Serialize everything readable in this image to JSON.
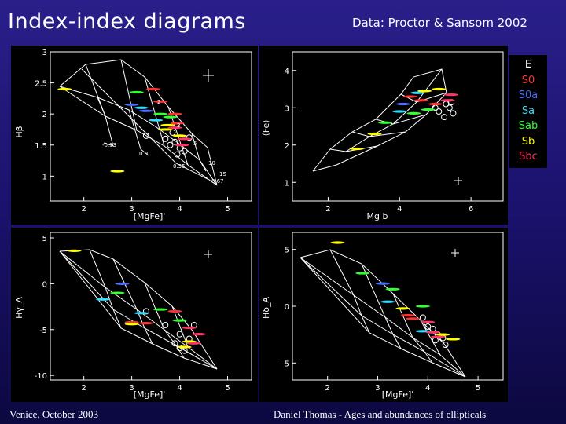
{
  "slide": {
    "title": "Index-index diagrams",
    "credit": "Data: Proctor & Sansom 2002",
    "footer_left": "Venice, October 2003",
    "footer_right": "Daniel Thomas - Ages and abundances of ellipticals"
  },
  "legend": [
    {
      "label": "E",
      "color": "#ffffff"
    },
    {
      "label": "S0",
      "color": "#ff3333"
    },
    {
      "label": "S0a",
      "color": "#4a6cff"
    },
    {
      "label": "Sa",
      "color": "#33ddff"
    },
    {
      "label": "Sab",
      "color": "#33ff33"
    },
    {
      "label": "Sb",
      "color": "#ffff00"
    },
    {
      "label": "Sbc",
      "color": "#ff3366"
    }
  ],
  "chart_data": [
    {
      "type": "scatter",
      "xlabel": "[MgFe]'",
      "ylabel": "Hβ",
      "xlim": [
        1.3,
        5.5
      ],
      "ylim": [
        0.6,
        3.0
      ],
      "xticks": [
        "2",
        "3",
        "4",
        "5"
      ],
      "yticks": [
        "1",
        "1.5",
        "2",
        "2.5",
        "3"
      ],
      "annotations": [
        "2",
        "3",
        "5",
        "10",
        "15",
        "-0.33",
        "0.0",
        "0.35",
        "0.67"
      ],
      "series": [
        {
          "name": "E",
          "points": [
            [
              3.3,
              1.65
            ],
            [
              3.7,
              1.6
            ],
            [
              3.8,
              1.5
            ],
            [
              3.9,
              1.55
            ],
            [
              4.0,
              1.45
            ],
            [
              4.1,
              1.4
            ],
            [
              3.95,
              1.35
            ],
            [
              4.2,
              1.62
            ],
            [
              3.85,
              1.7
            ]
          ]
        },
        {
          "name": "S0",
          "points": [
            [
              3.45,
              2.4
            ],
            [
              3.6,
              2.2
            ],
            [
              3.9,
              2.0
            ],
            [
              3.95,
              1.85
            ]
          ]
        },
        {
          "name": "S0a",
          "points": [
            [
              3.0,
              2.15
            ],
            [
              3.3,
              2.05
            ]
          ]
        },
        {
          "name": "Sa",
          "points": [
            [
              3.2,
              2.1
            ],
            [
              3.5,
              1.9
            ]
          ]
        },
        {
          "name": "Sab",
          "points": [
            [
              3.1,
              2.35
            ],
            [
              3.8,
              1.95
            ],
            [
              3.6,
              2.0
            ]
          ]
        },
        {
          "name": "Sb",
          "points": [
            [
              1.6,
              2.4
            ],
            [
              2.7,
              1.08
            ],
            [
              3.7,
              1.75
            ],
            [
              4.0,
              1.65
            ],
            [
              3.75,
              1.82
            ]
          ]
        },
        {
          "name": "Sbc",
          "points": [
            [
              4.1,
              1.6
            ],
            [
              4.05,
              1.5
            ],
            [
              3.9,
              1.78
            ]
          ]
        }
      ]
    },
    {
      "type": "scatter",
      "xlabel": "Mg b",
      "ylabel": "⟨Fe⟩",
      "xlim": [
        1.0,
        6.9
      ],
      "ylim": [
        0.5,
        4.5
      ],
      "xticks": [
        "2",
        "4",
        "6"
      ],
      "yticks": [
        "1",
        "2",
        "3",
        "4"
      ],
      "series": [
        {
          "name": "E",
          "points": [
            [
              5.0,
              3.0
            ],
            [
              5.1,
              2.9
            ],
            [
              5.3,
              3.1
            ],
            [
              5.4,
              3.0
            ],
            [
              5.5,
              2.85
            ],
            [
              5.45,
              3.15
            ],
            [
              5.25,
              2.75
            ]
          ]
        },
        {
          "name": "S0",
          "points": [
            [
              4.3,
              3.3
            ],
            [
              4.6,
              3.2
            ],
            [
              5.0,
              3.1
            ]
          ]
        },
        {
          "name": "S0a",
          "points": [
            [
              4.1,
              3.1
            ]
          ]
        },
        {
          "name": "Sa",
          "points": [
            [
              4.0,
              2.9
            ],
            [
              4.5,
              3.4
            ]
          ]
        },
        {
          "name": "Sab",
          "points": [
            [
              3.6,
              2.6
            ],
            [
              4.4,
              2.85
            ],
            [
              4.8,
              2.95
            ]
          ]
        },
        {
          "name": "Sb",
          "points": [
            [
              2.8,
              1.9
            ],
            [
              3.3,
              2.3
            ],
            [
              4.7,
              3.45
            ],
            [
              5.1,
              3.5
            ]
          ]
        },
        {
          "name": "Sbc",
          "points": [
            [
              5.35,
              3.2
            ],
            [
              5.45,
              3.35
            ]
          ]
        }
      ]
    },
    {
      "type": "scatter",
      "xlabel": "[MgFe]'",
      "ylabel": "Hγ_A",
      "xlim": [
        1.3,
        5.5
      ],
      "ylim": [
        -10.5,
        5.6
      ],
      "xticks": [
        "2",
        "3",
        "4",
        "5"
      ],
      "yticks": [
        "5",
        "0",
        "-5",
        "-10"
      ],
      "series": [
        {
          "name": "E",
          "points": [
            [
              3.3,
              -3.0
            ],
            [
              3.7,
              -4.5
            ],
            [
              3.9,
              -6.5
            ],
            [
              4.0,
              -7.0
            ],
            [
              4.1,
              -7.3
            ],
            [
              4.2,
              -6.0
            ],
            [
              4.3,
              -4.5
            ],
            [
              4.0,
              -5.5
            ]
          ]
        },
        {
          "name": "S0",
          "points": [
            [
              3.0,
              -4.2
            ],
            [
              3.3,
              -4.3
            ],
            [
              3.9,
              -3.0
            ]
          ]
        },
        {
          "name": "S0a",
          "points": [
            [
              2.8,
              0.0
            ]
          ]
        },
        {
          "name": "Sa",
          "points": [
            [
              2.4,
              -1.7
            ],
            [
              3.2,
              -3.2
            ]
          ]
        },
        {
          "name": "Sab",
          "points": [
            [
              2.7,
              -1.0
            ],
            [
              3.6,
              -2.8
            ],
            [
              4.0,
              -4.0
            ]
          ]
        },
        {
          "name": "Sb",
          "points": [
            [
              1.8,
              3.6
            ],
            [
              3.0,
              -4.4
            ],
            [
              4.2,
              -6.3
            ],
            [
              4.1,
              -6.9
            ]
          ]
        },
        {
          "name": "Sbc",
          "points": [
            [
              4.2,
              -4.8
            ],
            [
              4.4,
              -5.5
            ],
            [
              4.3,
              -6.5
            ]
          ]
        }
      ]
    },
    {
      "type": "scatter",
      "xlabel": "[MgFe]'",
      "ylabel": "Hδ_A",
      "xlim": [
        1.3,
        5.5
      ],
      "ylim": [
        -6.5,
        6.5
      ],
      "xticks": [
        "2",
        "3",
        "4",
        "5"
      ],
      "yticks": [
        "5",
        "0",
        "-5"
      ],
      "series": [
        {
          "name": "E",
          "points": [
            [
              3.9,
              -1.0
            ],
            [
              4.1,
              -2.0
            ],
            [
              4.2,
              -2.5
            ],
            [
              4.3,
              -2.8
            ],
            [
              4.15,
              -3.0
            ],
            [
              4.35,
              -3.4
            ],
            [
              4.0,
              -1.8
            ]
          ]
        },
        {
          "name": "S0",
          "points": [
            [
              3.6,
              -0.8
            ],
            [
              3.7,
              -1.1
            ]
          ]
        },
        {
          "name": "S0a",
          "points": [
            [
              3.1,
              2.0
            ]
          ]
        },
        {
          "name": "Sa",
          "points": [
            [
              3.2,
              0.4
            ],
            [
              3.9,
              -2.2
            ]
          ]
        },
        {
          "name": "Sab",
          "points": [
            [
              2.7,
              2.9
            ],
            [
              3.3,
              1.5
            ],
            [
              3.9,
              0.0
            ]
          ]
        },
        {
          "name": "Sb",
          "points": [
            [
              2.2,
              5.6
            ],
            [
              3.5,
              -0.2
            ],
            [
              4.3,
              -2.5
            ],
            [
              4.5,
              -2.9
            ]
          ]
        },
        {
          "name": "Sbc",
          "points": [
            [
              4.0,
              -1.4
            ],
            [
              4.1,
              -2.3
            ],
            [
              4.2,
              -2.7
            ]
          ]
        }
      ]
    }
  ]
}
